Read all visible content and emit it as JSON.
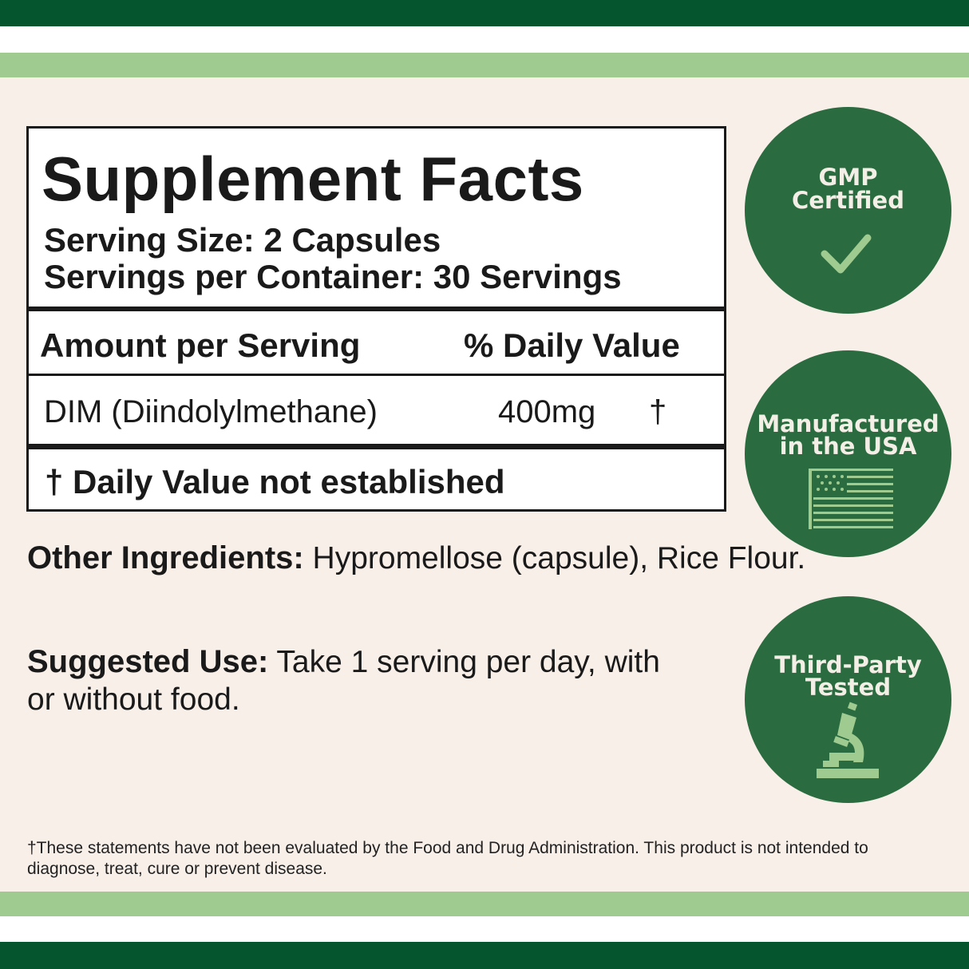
{
  "colors": {
    "dark_green": "#05552f",
    "light_green": "#9fca90",
    "badge_green": "#2a6b3f",
    "background": "#f8efe9"
  },
  "facts": {
    "title": "Supplement Facts",
    "serving_size": "Serving Size: 2 Capsules",
    "servings_per_container": "Servings per Container: 30 Servings",
    "header_amount": "Amount per Serving",
    "header_dv": "% Daily Value",
    "rows": [
      {
        "name": "DIM (Diindolylmethane)",
        "amount": "400mg",
        "dv": "†"
      }
    ],
    "footnote": "† Daily Value not established"
  },
  "other_ingredients": {
    "label": "Other Ingredients:",
    "text": " Hypromellose (capsule), Rice Flour."
  },
  "suggested_use": {
    "label": "Suggested Use:",
    "text": " Take 1 serving per day, with or without food."
  },
  "disclaimer": "†These statements have not been evaluated by the Food and Drug Administration. This product is not intended to diagnose, treat, cure or prevent disease.",
  "badges": [
    {
      "line1": "GMP",
      "line2": "Certified",
      "icon": "checkmark-icon"
    },
    {
      "line1": "Manufactured",
      "line2": "in the USA",
      "icon": "us-flag-icon"
    },
    {
      "line1": "Third-Party",
      "line2": "Tested",
      "icon": "microscope-icon"
    }
  ]
}
